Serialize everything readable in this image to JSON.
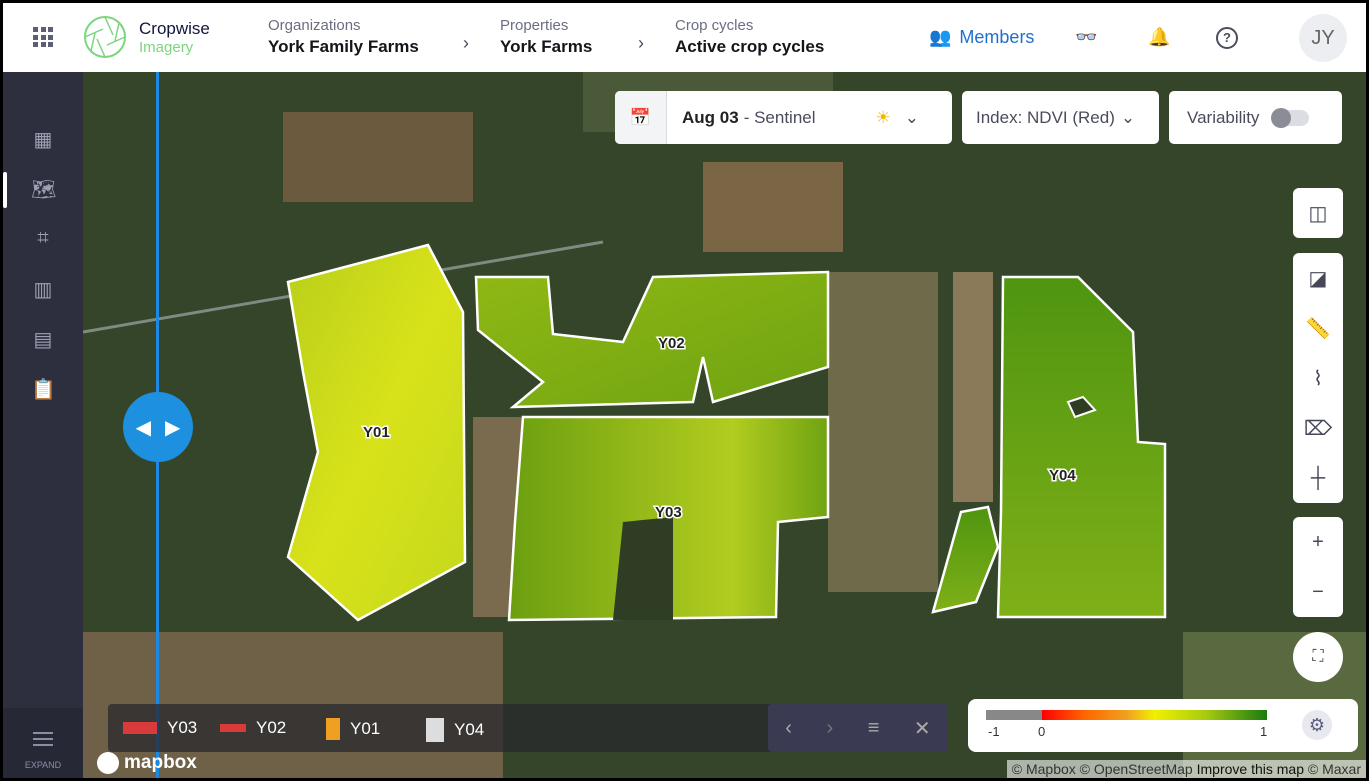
{
  "header": {
    "logo_name": "Cropwise",
    "logo_sub": "Imagery",
    "breadcrumbs": [
      {
        "label": "Organizations",
        "value": "York Family Farms"
      },
      {
        "label": "Properties",
        "value": "York Farms"
      },
      {
        "label": "Crop cycles",
        "value": "Active crop cycles"
      }
    ],
    "members_label": "Members",
    "avatar_initials": "JY"
  },
  "sidebar": {
    "expand_label": "EXPAND",
    "items": [
      "dashboard",
      "map",
      "crop",
      "report",
      "notes",
      "clipboard"
    ],
    "active": "map"
  },
  "map": {
    "date_selector": {
      "date": "Aug 03",
      "source": "- Sentinel"
    },
    "index_selector": "Index: NDVI (Red)",
    "variability": {
      "label": "Variability",
      "enabled": false
    },
    "fields": [
      "Y01",
      "Y02",
      "Y03",
      "Y04"
    ],
    "field_list": [
      {
        "name": "Y03",
        "color": "#d93a3a"
      },
      {
        "name": "Y02",
        "color": "#d93a3a"
      },
      {
        "name": "Y01",
        "color": "#f0a020"
      },
      {
        "name": "Y04",
        "color": "#dddddd"
      }
    ],
    "scale": {
      "min": "-1",
      "zero": "0",
      "max": "1"
    },
    "mapbox_label": "mapbox",
    "attribution": {
      "a": "© Mapbox © OpenStreetMap",
      "link": "Improve this map",
      "b": "© Maxar"
    }
  }
}
